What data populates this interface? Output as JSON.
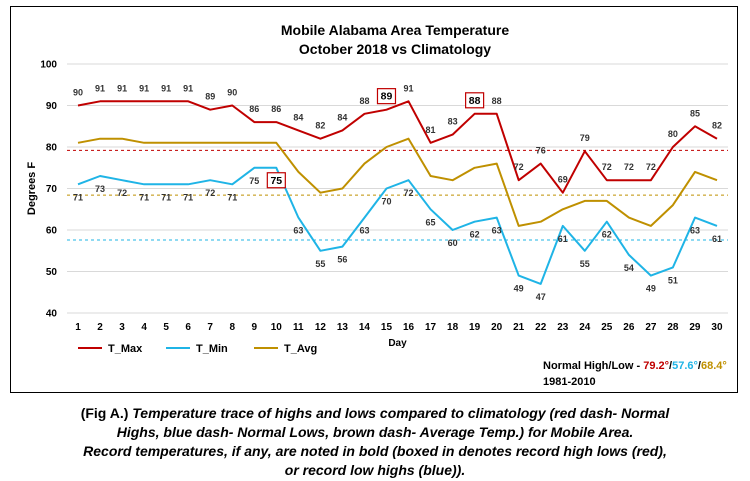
{
  "chart_data": {
    "type": "line",
    "title": "Mobile Alabama Area Temperature",
    "subtitle": "October 2018 vs Climatology",
    "xlabel": "Day",
    "ylabel": "Degrees F",
    "ylim": [
      40,
      100
    ],
    "yticks": [
      40,
      50,
      60,
      70,
      80,
      90,
      100
    ],
    "x": [
      1,
      2,
      3,
      4,
      5,
      6,
      7,
      8,
      9,
      10,
      11,
      12,
      13,
      14,
      15,
      16,
      17,
      18,
      19,
      20,
      21,
      22,
      23,
      24,
      25,
      26,
      27,
      28,
      29,
      30
    ],
    "grid": true,
    "legend_placement": "bottom-left",
    "series": [
      {
        "name": "T_Max",
        "color": "#c00000",
        "values": [
          90,
          91,
          91,
          91,
          91,
          91,
          89,
          90,
          86,
          86,
          84,
          82,
          84,
          88,
          89,
          91,
          81,
          83,
          88,
          88,
          72,
          76,
          69,
          79,
          72,
          72,
          72,
          80,
          85,
          82
        ]
      },
      {
        "name": "T_Min",
        "color": "#1fb4e6",
        "values": [
          71,
          73,
          72,
          71,
          71,
          71,
          72,
          71,
          75,
          75,
          63,
          55,
          56,
          63,
          70,
          72,
          65,
          60,
          62,
          63,
          49,
          47,
          61,
          55,
          62,
          54,
          49,
          51,
          63,
          61
        ]
      },
      {
        "name": "T_Avg",
        "color": "#bf9000",
        "values": [
          81,
          82,
          82,
          81,
          81,
          81,
          81,
          81,
          81,
          81,
          74,
          69,
          70,
          76,
          80,
          82,
          73,
          72,
          75,
          76,
          61,
          62,
          65,
          67,
          67,
          63,
          61,
          66,
          74,
          72
        ]
      }
    ],
    "reference_lines": [
      {
        "value": 79.2,
        "color": "#c00000"
      },
      {
        "value": 57.6,
        "color": "#1fb4e6"
      },
      {
        "value": 68.4,
        "color": "#bf9000"
      }
    ],
    "record_boxes": [
      {
        "day": 10,
        "series": "T_Min",
        "value": 75,
        "color": "#c00000"
      },
      {
        "day": 15,
        "series": "T_Max",
        "value": 89,
        "color": "#c00000"
      },
      {
        "day": 19,
        "series": "T_Max",
        "value": 88,
        "color": "#c00000"
      }
    ],
    "normals_label": {
      "prefix": "Normal High/Low - ",
      "high": "79.2°",
      "sep1": "/",
      "low": "57.6°",
      "sep2": "/",
      "avg": "68.4°",
      "period": "1981-2010"
    }
  },
  "caption": {
    "line1_prefix": "(Fig A.) ",
    "line1": "Temperature trace of highs and lows compared to climatology (red dash- Normal",
    "line2": "Highs, blue dash- Normal Lows, brown dash- Average Temp.) for Mobile Area.",
    "line3": "Record temperatures, if any, are noted in bold (boxed in denotes record high lows (red),",
    "line4": "or record low highs (blue))."
  }
}
